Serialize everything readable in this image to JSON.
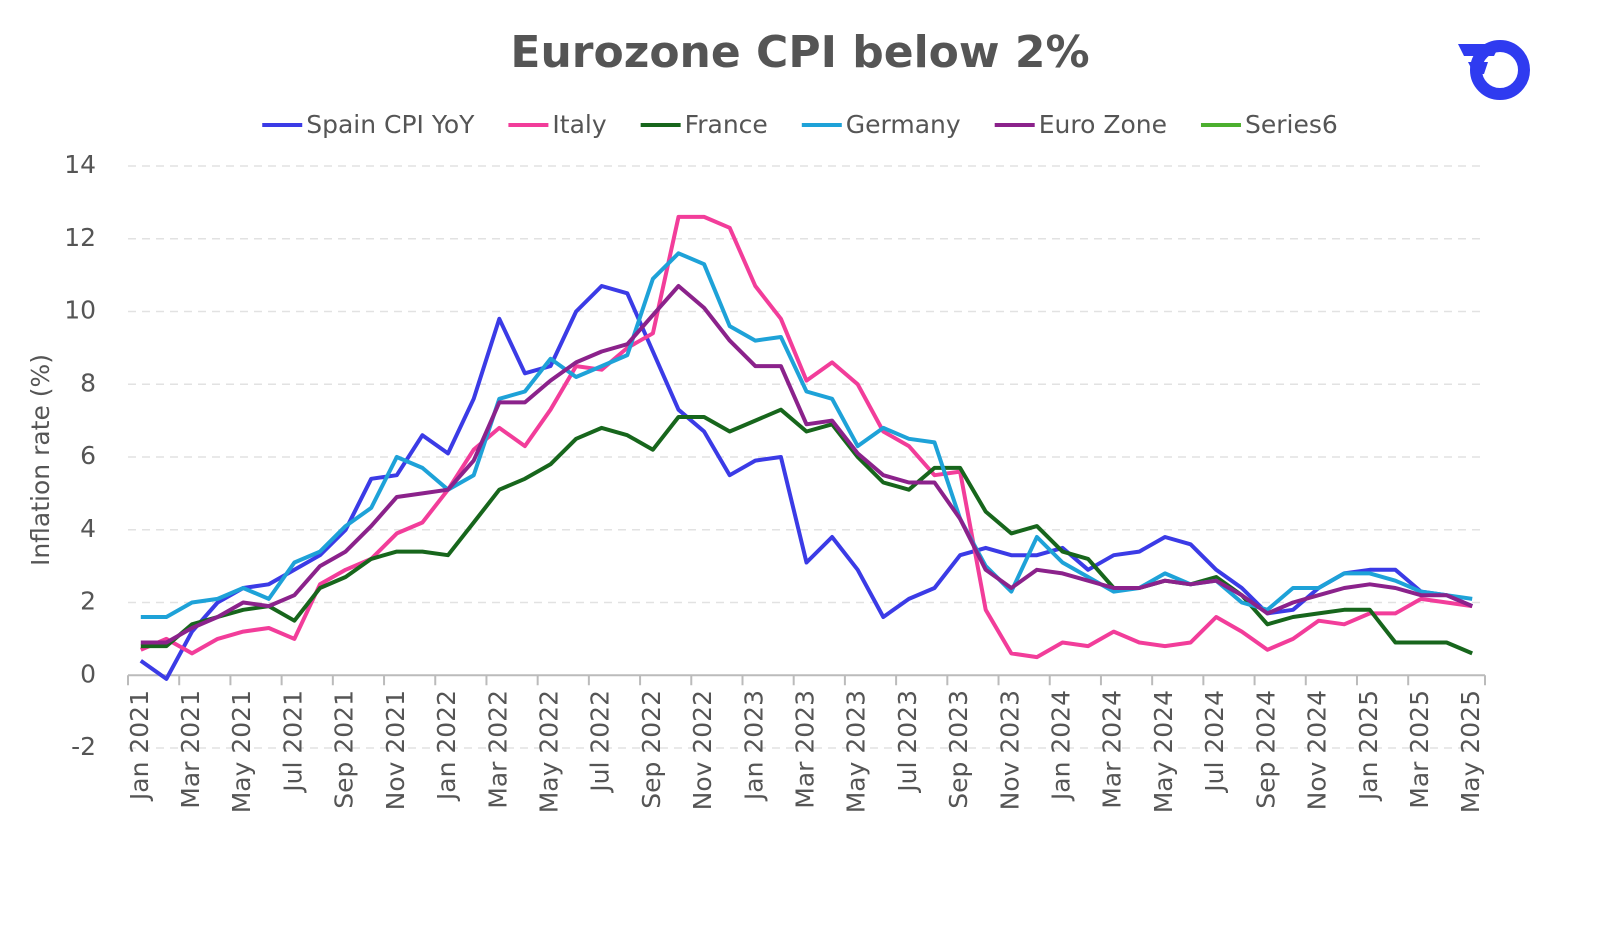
{
  "chart_data": {
    "type": "line",
    "title": "Eurozone CPI below 2%",
    "y_label": "Inflation rate (%)",
    "categories": [
      "Jan 2021",
      null,
      "Mar 2021",
      null,
      "May 2021",
      null,
      "Jul 2021",
      null,
      "Sep 2021",
      null,
      "Nov 2021",
      null,
      "Jan 2022",
      null,
      "Mar 2022",
      null,
      "May 2022",
      null,
      "Jul 2022",
      null,
      "Sep 2022",
      null,
      "Nov 2022",
      null,
      "Jan 2023",
      null,
      "Mar 2023",
      null,
      "May 2023",
      null,
      "Jul 2023",
      null,
      "Sep 2023",
      null,
      "Nov 2023",
      null,
      "Jan 2024",
      null,
      "Mar 2024",
      null,
      "May 2024",
      null,
      "Jul 2024",
      null,
      "Sep 2024",
      null,
      "Nov 2024",
      null,
      "Jan 2025",
      null,
      "Mar 2025",
      null,
      "May 2025"
    ],
    "series": [
      {
        "name": "Spain CPI YoY",
        "color": "#3b3be6",
        "values": [
          0.4,
          -0.1,
          1.2,
          2.0,
          2.4,
          2.5,
          2.9,
          3.3,
          4.0,
          5.4,
          5.5,
          6.6,
          6.1,
          7.6,
          9.8,
          8.3,
          8.5,
          10.0,
          10.7,
          10.5,
          8.9,
          7.3,
          6.7,
          5.5,
          5.9,
          6.0,
          3.1,
          3.8,
          2.9,
          1.6,
          2.1,
          2.4,
          3.3,
          3.5,
          3.3,
          3.3,
          3.5,
          2.9,
          3.3,
          3.4,
          3.8,
          3.6,
          2.9,
          2.4,
          1.7,
          1.8,
          2.4,
          2.8,
          2.9,
          2.9,
          2.3,
          2.2,
          1.9
        ]
      },
      {
        "name": "Italy",
        "color": "#f23d9a",
        "values": [
          0.7,
          1.0,
          0.6,
          1.0,
          1.2,
          1.3,
          1.0,
          2.5,
          2.9,
          3.2,
          3.9,
          4.2,
          5.1,
          6.2,
          6.8,
          6.3,
          7.3,
          8.5,
          8.4,
          9.0,
          9.4,
          12.6,
          12.6,
          12.3,
          10.7,
          9.8,
          8.1,
          8.6,
          8.0,
          6.7,
          6.3,
          5.5,
          5.6,
          1.8,
          0.6,
          0.5,
          0.9,
          0.8,
          1.2,
          0.9,
          0.8,
          0.9,
          1.6,
          1.2,
          0.7,
          1.0,
          1.5,
          1.4,
          1.7,
          1.7,
          2.1,
          2.0,
          1.9
        ]
      },
      {
        "name": "France",
        "color": "#17661c",
        "values": [
          0.8,
          0.8,
          1.4,
          1.6,
          1.8,
          1.9,
          1.5,
          2.4,
          2.7,
          3.2,
          3.4,
          3.4,
          3.3,
          4.2,
          5.1,
          5.4,
          5.8,
          6.5,
          6.8,
          6.6,
          6.2,
          7.1,
          7.1,
          6.7,
          7.0,
          7.3,
          6.7,
          6.9,
          6.0,
          5.3,
          5.1,
          5.7,
          5.7,
          4.5,
          3.9,
          4.1,
          3.4,
          3.2,
          2.4,
          2.4,
          2.6,
          2.5,
          2.7,
          2.2,
          1.4,
          1.6,
          1.7,
          1.8,
          1.8,
          0.9,
          0.9,
          0.9,
          0.6
        ]
      },
      {
        "name": "Germany",
        "color": "#1ea2d8",
        "values": [
          1.6,
          1.6,
          2.0,
          2.1,
          2.4,
          2.1,
          3.1,
          3.4,
          4.1,
          4.6,
          6.0,
          5.7,
          5.1,
          5.5,
          7.6,
          7.8,
          8.7,
          8.2,
          8.5,
          8.8,
          10.9,
          11.6,
          11.3,
          9.6,
          9.2,
          9.3,
          7.8,
          7.6,
          6.3,
          6.8,
          6.5,
          6.4,
          4.3,
          3.0,
          2.3,
          3.8,
          3.1,
          2.7,
          2.3,
          2.4,
          2.8,
          2.5,
          2.6,
          2.0,
          1.8,
          2.4,
          2.4,
          2.8,
          2.8,
          2.6,
          2.3,
          2.2,
          2.1
        ]
      },
      {
        "name": "Euro Zone",
        "color": "#8b228b",
        "values": [
          0.9,
          0.9,
          1.3,
          1.6,
          2.0,
          1.9,
          2.2,
          3.0,
          3.4,
          4.1,
          4.9,
          5.0,
          5.1,
          5.9,
          7.5,
          7.5,
          8.1,
          8.6,
          8.9,
          9.1,
          9.9,
          10.7,
          10.1,
          9.2,
          8.5,
          8.5,
          6.9,
          7.0,
          6.1,
          5.5,
          5.3,
          5.3,
          4.3,
          2.9,
          2.4,
          2.9,
          2.8,
          2.6,
          2.4,
          2.4,
          2.6,
          2.5,
          2.6,
          2.2,
          1.7,
          2.0,
          2.2,
          2.4,
          2.5,
          2.4,
          2.2,
          2.2,
          1.9
        ]
      },
      {
        "name": "Series6",
        "color": "#4caf2e",
        "values": [
          null,
          null,
          null,
          null,
          null,
          null,
          null,
          null,
          null,
          null,
          null,
          null,
          null,
          null,
          null,
          null,
          null,
          null,
          null,
          null,
          null,
          null,
          null,
          null,
          null,
          null,
          null,
          null,
          null,
          null,
          null,
          null,
          null,
          null,
          null,
          null,
          null,
          null,
          null,
          null,
          null,
          null,
          null,
          null,
          null,
          null,
          null,
          null,
          null,
          null,
          null,
          null,
          null
        ]
      }
    ],
    "ylim": [
      -2,
      14
    ],
    "yticks": [
      -2,
      0,
      2,
      4,
      6,
      8,
      10,
      12,
      14
    ],
    "grid": true,
    "legend": "top"
  }
}
